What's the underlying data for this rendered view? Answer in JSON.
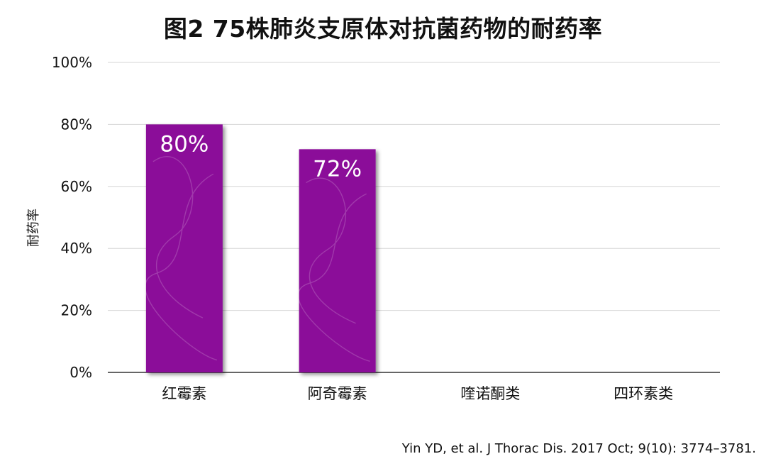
{
  "chart_data": {
    "type": "bar",
    "title": "图2 75株肺炎支原体对抗菌药物的耐药率",
    "xlabel": "",
    "ylabel": "耐药率",
    "categories": [
      "红霉素",
      "阿奇霉素",
      "喹诺酮类",
      "四环素类"
    ],
    "values": [
      80,
      72,
      0,
      0
    ],
    "data_labels": [
      "80%",
      "72%",
      null,
      null
    ],
    "ylim": [
      0,
      100
    ],
    "yticks": [
      "0%",
      "20%",
      "40%",
      "60%",
      "80%",
      "100%"
    ],
    "grid": true,
    "bar_color": "#8B0A99"
  },
  "citation": "Yin YD, et al. J Thorac Dis. 2017 Oct; 9(10): 3774–3781."
}
